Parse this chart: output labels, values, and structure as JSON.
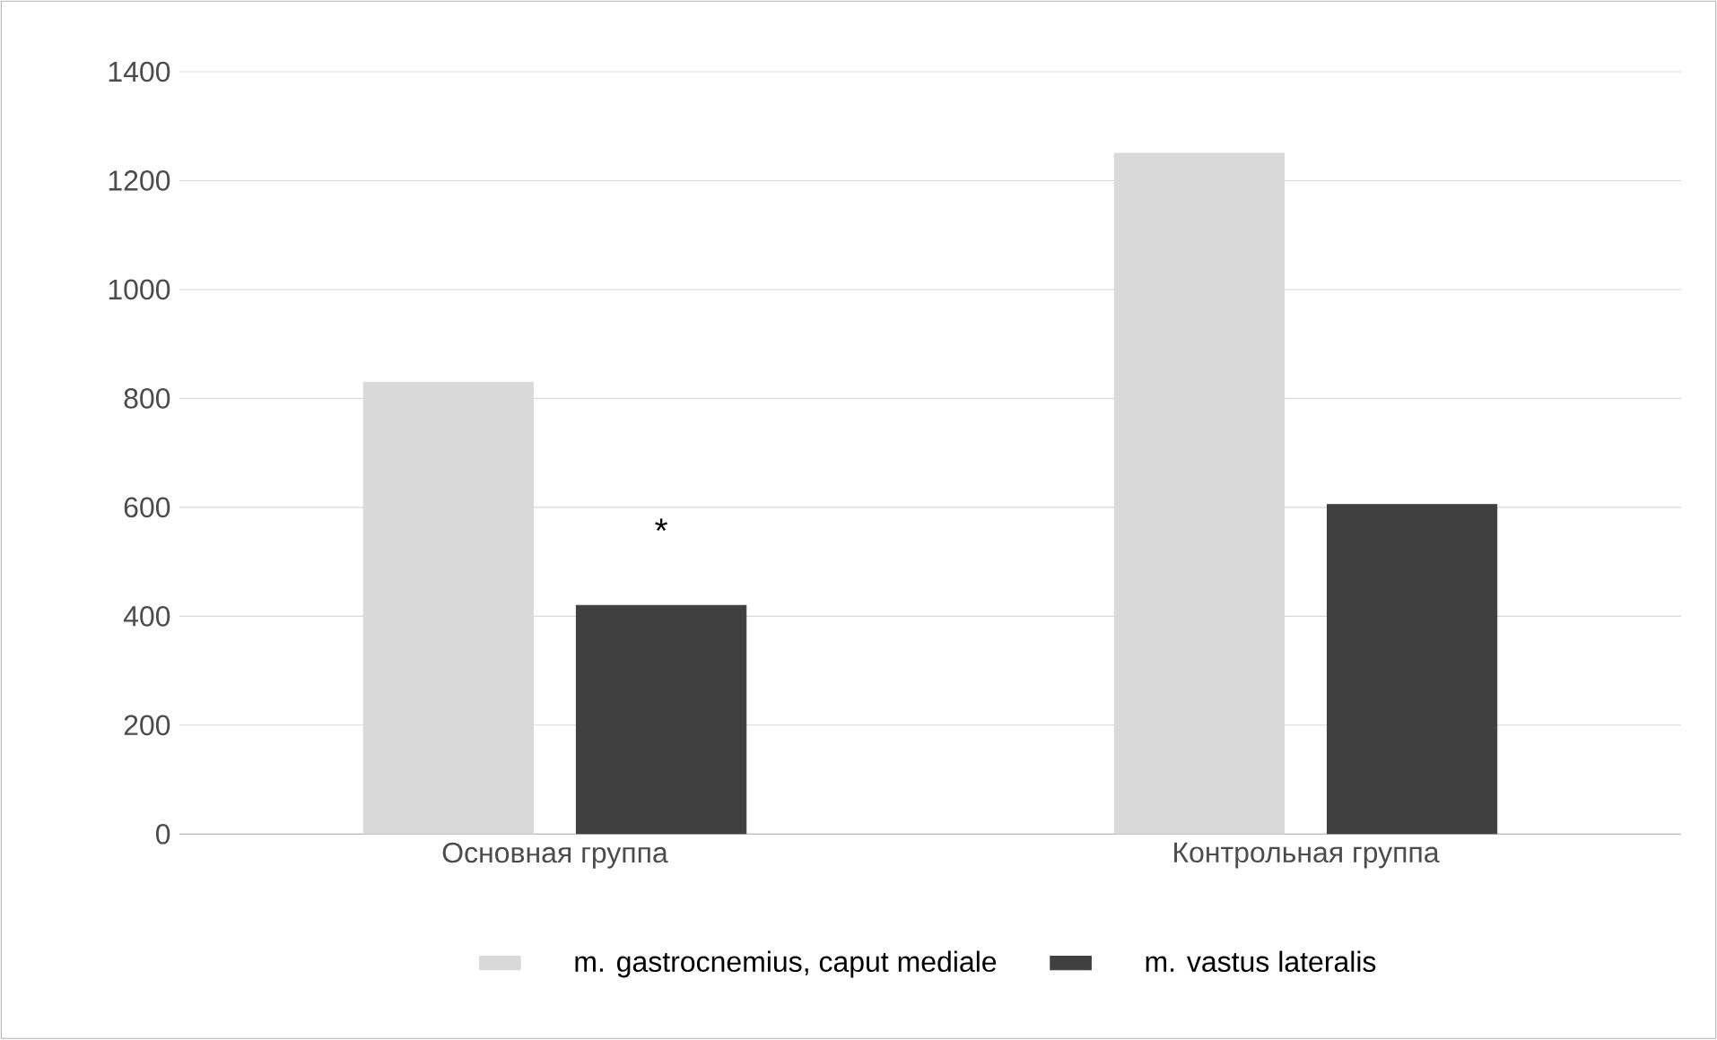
{
  "chart_data": {
    "type": "bar",
    "categories": [
      "Основная группа",
      "Контрольная группа"
    ],
    "series": [
      {
        "name": "m. gastrocnemius, caput mediale",
        "color": "#d9d9d9",
        "values": [
          830,
          1250
        ]
      },
      {
        "name": "m. vastus lateralis",
        "color": "#404040",
        "values": [
          420,
          605
        ]
      }
    ],
    "ylim": [
      0,
      1400
    ],
    "yticks": [
      0,
      200,
      400,
      600,
      800,
      1000,
      1200,
      1400
    ],
    "grid": "y",
    "legend": "bottom",
    "annotations": [
      "*"
    ]
  }
}
